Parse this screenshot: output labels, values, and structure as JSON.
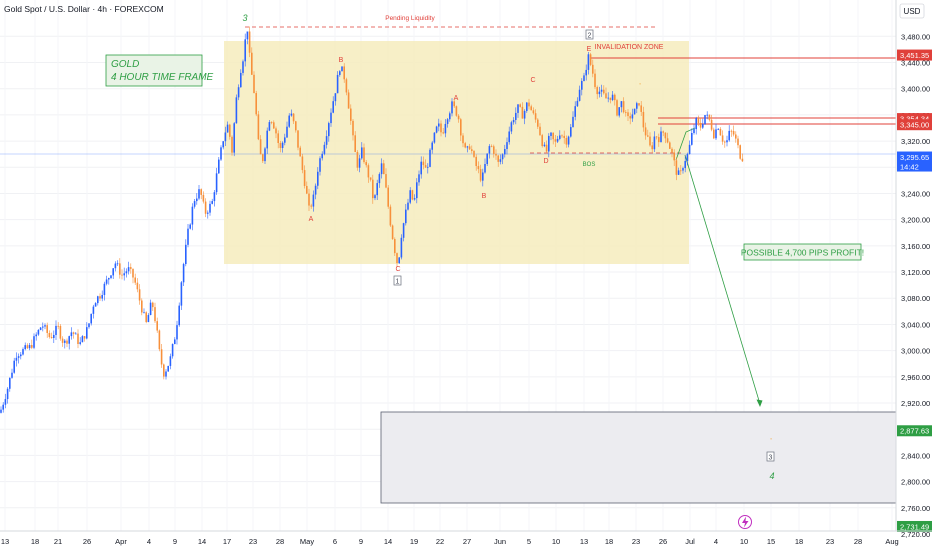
{
  "header": {
    "symbol_title": "Gold Spot / U.S. Dollar · 4h · FOREXCOM",
    "currency": "USD"
  },
  "colors": {
    "up": "#2962ff",
    "down": "#f7903b",
    "zone_fill": "#f6ecbd",
    "target_fill": "#ececf0",
    "red": "#e0403a",
    "green": "#2e9e44",
    "current": "#2962ff"
  },
  "annotations": {
    "gold_box_line1": "GOLD",
    "gold_box_line2": "4 HOUR TIME FRAME",
    "pending_liquidity": "Pending Liquidity",
    "invalidation_zone": "INVALIDATION ZONE",
    "bos": "BOS",
    "possible_profit": "POSSIBLE 4,700 PIPS PROFIT!",
    "current_time": "14:42"
  },
  "chart_data": {
    "type": "candlestick",
    "title": "Gold Spot / U.S. Dollar · 4h · FOREXCOM",
    "ylabel": "USD",
    "ylim": [
      2700,
      3530
    ],
    "y_ticks": [
      2720,
      2760,
      2800,
      2840,
      2880,
      2920,
      2960,
      3000,
      3040,
      3080,
      3120,
      3160,
      3200,
      3240,
      3280,
      3320,
      3360,
      3400,
      3440,
      3480
    ],
    "x_ticks": [
      "13",
      "18",
      "21",
      "26",
      "Apr",
      "4",
      "9",
      "14",
      "17",
      "23",
      "28",
      "May",
      "6",
      "9",
      "14",
      "19",
      "22",
      "27",
      "Jun",
      "5",
      "10",
      "13",
      "18",
      "23",
      "26",
      "Jul",
      "4",
      "10",
      "15",
      "18",
      "23",
      "28",
      "Aug"
    ],
    "price_tags": [
      {
        "label": "3,451.35",
        "value": 3451.35,
        "color": "#e0403a"
      },
      {
        "label": "3,354.34",
        "value": 3354.34,
        "color": "#e0403a"
      },
      {
        "label": "3,345.00",
        "value": 3345.0,
        "color": "#e0403a"
      },
      {
        "label": "3,295.65",
        "value": 3295.65,
        "color": "#2962ff"
      },
      {
        "label": "2,877.63",
        "value": 2877.63,
        "color": "#2e9e44"
      },
      {
        "label": "2,731.49",
        "value": 2731.49,
        "color": "#2e9e44"
      }
    ],
    "price_path": [
      [
        0,
        2905
      ],
      [
        8,
        2945
      ],
      [
        16,
        2995
      ],
      [
        30,
        3005
      ],
      [
        42,
        3040
      ],
      [
        50,
        3020
      ],
      [
        58,
        3035
      ],
      [
        64,
        3010
      ],
      [
        72,
        3030
      ],
      [
        80,
        3010
      ],
      [
        88,
        3035
      ],
      [
        94,
        3075
      ],
      [
        100,
        3085
      ],
      [
        108,
        3110
      ],
      [
        115,
        3135
      ],
      [
        122,
        3115
      ],
      [
        128,
        3125
      ],
      [
        134,
        3110
      ],
      [
        140,
        3075
      ],
      [
        146,
        3040
      ],
      [
        152,
        3075
      ],
      [
        156,
        3040
      ],
      [
        160,
        2990
      ],
      [
        164,
        2965
      ],
      [
        170,
        2985
      ],
      [
        176,
        3030
      ],
      [
        182,
        3115
      ],
      [
        188,
        3180
      ],
      [
        194,
        3230
      ],
      [
        200,
        3245
      ],
      [
        205,
        3210
      ],
      [
        212,
        3225
      ],
      [
        218,
        3280
      ],
      [
        224,
        3330
      ],
      [
        228,
        3345
      ],
      [
        232,
        3305
      ],
      [
        236,
        3380
      ],
      [
        240,
        3425
      ],
      [
        244,
        3455
      ],
      [
        247,
        3500
      ],
      [
        250,
        3440
      ],
      [
        255,
        3385
      ],
      [
        258,
        3320
      ],
      [
        262,
        3285
      ],
      [
        266,
        3325
      ],
      [
        270,
        3360
      ],
      [
        275,
        3340
      ],
      [
        280,
        3305
      ],
      [
        286,
        3335
      ],
      [
        290,
        3365
      ],
      [
        295,
        3340
      ],
      [
        300,
        3295
      ],
      [
        305,
        3255
      ],
      [
        309,
        3215
      ],
      [
        314,
        3235
      ],
      [
        318,
        3280
      ],
      [
        322,
        3305
      ],
      [
        326,
        3330
      ],
      [
        330,
        3360
      ],
      [
        335,
        3395
      ],
      [
        340,
        3435
      ],
      [
        345,
        3415
      ],
      [
        350,
        3360
      ],
      [
        354,
        3310
      ],
      [
        358,
        3280
      ],
      [
        362,
        3305
      ],
      [
        366,
        3280
      ],
      [
        370,
        3260
      ],
      [
        374,
        3225
      ],
      [
        378,
        3260
      ],
      [
        382,
        3285
      ],
      [
        386,
        3245
      ],
      [
        390,
        3200
      ],
      [
        394,
        3160
      ],
      [
        398,
        3128
      ],
      [
        401,
        3175
      ],
      [
        405,
        3205
      ],
      [
        410,
        3240
      ],
      [
        414,
        3225
      ],
      [
        418,
        3265
      ],
      [
        422,
        3290
      ],
      [
        426,
        3275
      ],
      [
        430,
        3300
      ],
      [
        434,
        3325
      ],
      [
        438,
        3345
      ],
      [
        442,
        3330
      ],
      [
        446,
        3355
      ],
      [
        452,
        3375
      ],
      [
        458,
        3360
      ],
      [
        462,
        3325
      ],
      [
        466,
        3300
      ],
      [
        470,
        3315
      ],
      [
        474,
        3290
      ],
      [
        478,
        3275
      ],
      [
        482,
        3260
      ],
      [
        486,
        3290
      ],
      [
        490,
        3315
      ],
      [
        494,
        3305
      ],
      [
        498,
        3285
      ],
      [
        503,
        3300
      ],
      [
        508,
        3330
      ],
      [
        513,
        3355
      ],
      [
        518,
        3370
      ],
      [
        523,
        3360
      ],
      [
        528,
        3380
      ],
      [
        533,
        3360
      ],
      [
        538,
        3345
      ],
      [
        542,
        3320
      ],
      [
        546,
        3300
      ],
      [
        550,
        3330
      ],
      [
        555,
        3315
      ],
      [
        560,
        3335
      ],
      [
        566,
        3320
      ],
      [
        571,
        3340
      ],
      [
        575,
        3370
      ],
      [
        579,
        3400
      ],
      [
        584,
        3415
      ],
      [
        588,
        3450
      ],
      [
        592,
        3430
      ],
      [
        596,
        3400
      ],
      [
        600,
        3395
      ],
      [
        606,
        3385
      ],
      [
        612,
        3390
      ],
      [
        617,
        3365
      ],
      [
        622,
        3380
      ],
      [
        627,
        3350
      ],
      [
        631,
        3360
      ],
      [
        635,
        3365
      ],
      [
        639,
        3380
      ],
      [
        643,
        3345
      ],
      [
        647,
        3325
      ],
      [
        651,
        3305
      ],
      [
        655,
        3330
      ],
      [
        659,
        3325
      ],
      [
        664,
        3335
      ],
      [
        668,
        3320
      ],
      [
        672,
        3300
      ],
      [
        676,
        3275
      ],
      [
        680,
        3265
      ],
      [
        684,
        3290
      ],
      [
        688,
        3300
      ],
      [
        692,
        3330
      ],
      [
        696,
        3350
      ],
      [
        700,
        3340
      ],
      [
        705,
        3360
      ],
      [
        710,
        3350
      ],
      [
        714,
        3330
      ],
      [
        718,
        3345
      ],
      [
        722,
        3325
      ],
      [
        726,
        3315
      ],
      [
        730,
        3335
      ],
      [
        734,
        3330
      ],
      [
        738,
        3310
      ],
      [
        741,
        3295
      ],
      [
        744,
        3296
      ]
    ],
    "zones": [
      {
        "name": "consolidation-zone",
        "top": 3470,
        "bottom": 3120
      },
      {
        "name": "target-zone",
        "top": 2877.63,
        "bottom": 2731.49
      }
    ],
    "wave_labels": [
      {
        "text": "3",
        "style": "green"
      },
      {
        "text": "B",
        "style": "red"
      },
      {
        "text": "A",
        "style": "red"
      },
      {
        "text": "C",
        "style": "red"
      },
      {
        "text": "A",
        "style": "red"
      },
      {
        "text": "B",
        "style": "red"
      },
      {
        "text": "C",
        "style": "red"
      },
      {
        "text": "D",
        "style": "red"
      },
      {
        "text": "E",
        "style": "red"
      },
      {
        "text": "2",
        "style": "boxed"
      },
      {
        "text": "1",
        "style": "boxed"
      },
      {
        "text": "3",
        "style": "boxed"
      },
      {
        "text": "4",
        "style": "green"
      }
    ]
  }
}
